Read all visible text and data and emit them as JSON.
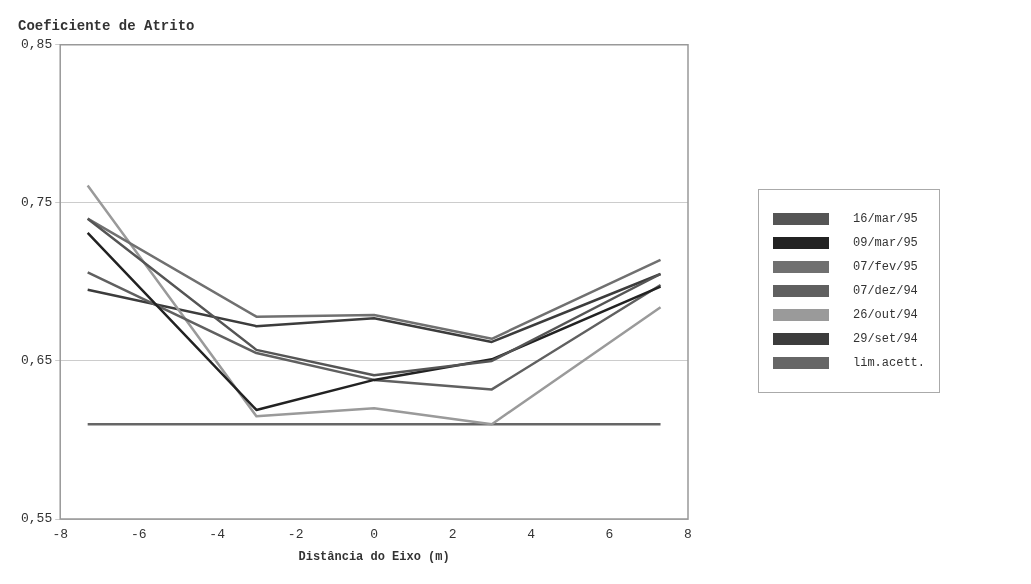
{
  "chart_data": {
    "type": "line",
    "title": "Coeficiente de Atrito",
    "xlabel": "Distância do Eixo (m)",
    "xlim": [
      -8,
      8
    ],
    "xticks": [
      -8,
      -6,
      -4,
      -2,
      0,
      2,
      4,
      6,
      8
    ],
    "ylim": [
      0.55,
      0.85
    ],
    "yticks": [
      {
        "value": 0.55,
        "label": "0,55"
      },
      {
        "value": 0.65,
        "label": "0,65"
      },
      {
        "value": 0.75,
        "label": "0,75"
      },
      {
        "value": 0.85,
        "label": "0,85"
      }
    ],
    "x": [
      -7.3,
      -3,
      0,
      3,
      7.3
    ],
    "series": [
      {
        "name": "16/mar/95",
        "color": "#555555",
        "values": [
          0.74,
          0.657,
          0.641,
          0.65,
          0.705
        ]
      },
      {
        "name": "09/mar/95",
        "color": "#222222",
        "values": [
          0.731,
          0.619,
          0.638,
          0.651,
          0.697
        ]
      },
      {
        "name": "07/fev/95",
        "color": "#707070",
        "values": [
          0.74,
          0.678,
          0.679,
          0.664,
          0.714
        ]
      },
      {
        "name": "07/dez/94",
        "color": "#606060",
        "values": [
          0.706,
          0.655,
          0.638,
          0.632,
          0.698
        ]
      },
      {
        "name": "26/out/94",
        "color": "#9a9a9a",
        "values": [
          0.761,
          0.615,
          0.62,
          0.61,
          0.684
        ]
      },
      {
        "name": "29/set/94",
        "color": "#3c3c3c",
        "values": [
          0.695,
          0.672,
          0.677,
          0.662,
          0.705
        ]
      },
      {
        "name": "lim.acett.",
        "color": "#666666",
        "values": [
          0.61,
          0.61,
          0.61,
          0.61,
          0.61
        ]
      }
    ],
    "grid": "y",
    "legend": "right",
    "marker": "none",
    "line_style": "solid"
  }
}
